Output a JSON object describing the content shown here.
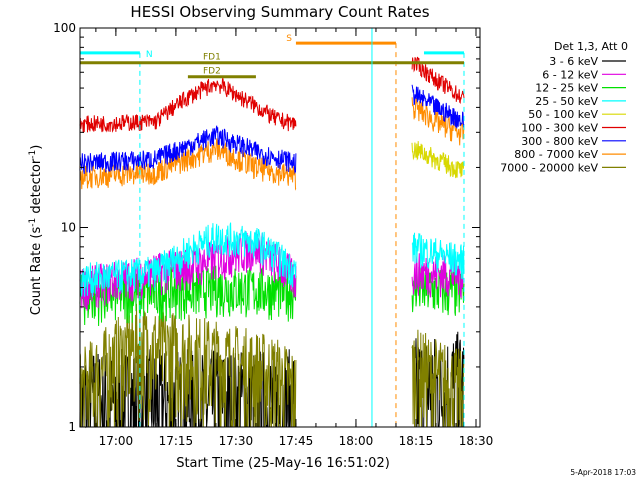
{
  "chart_data": {
    "type": "line",
    "title": "HESSI Observing Summary Count Rates",
    "xlabel": "Start Time (25-May-16 16:51:02)",
    "ylabel": "Count Rate (s⁻¹ detector⁻¹)",
    "ylabel_main": "Count Rate (s",
    "ylabel_sup1": "-1",
    "ylabel_mid": " detector",
    "ylabel_sup2": "-1",
    "ylabel_end": ")",
    "y_scale": "log",
    "ylim": [
      1,
      100
    ],
    "xlim": [
      "16:51:02",
      "18:31:00"
    ],
    "x_ticks": [
      "17:00",
      "17:15",
      "17:30",
      "17:45",
      "18:00",
      "18:15",
      "18:30"
    ],
    "y_ticks": [
      "1",
      "10",
      "100"
    ],
    "legend_title": "Det 1,3, Att 0",
    "legend_position": "right",
    "footer_date": "5-Apr-2018 17:03",
    "data_gaps": [
      [
        "17:45",
        "18:14"
      ]
    ],
    "series": [
      {
        "name": "3 - 6 keV",
        "color": "#000000",
        "x": [
          "16:51",
          "17:45",
          "18:14",
          "18:27"
        ],
        "values": [
          1.3,
          1.3,
          1.5,
          1.6
        ]
      },
      {
        "name": "6 - 12 keV",
        "color": "#e000e0",
        "x": [
          "16:51",
          "17:20",
          "17:35",
          "17:45",
          "18:14",
          "18:27"
        ],
        "values": [
          5.0,
          6.5,
          8.0,
          5.5,
          6.0,
          5.8
        ]
      },
      {
        "name": "12 - 25 keV",
        "color": "#00e000",
        "x": [
          "16:51",
          "17:25",
          "17:45",
          "18:14",
          "18:27"
        ],
        "values": [
          4.5,
          5.0,
          4.8,
          5.0,
          4.8
        ]
      },
      {
        "name": "25 - 50 keV",
        "color": "#00ffff",
        "x": [
          "16:51",
          "17:10",
          "17:25",
          "17:35",
          "17:45",
          "18:14",
          "18:27"
        ],
        "values": [
          5.5,
          6.0,
          9.0,
          8.5,
          6.0,
          8.0,
          6.8
        ]
      },
      {
        "name": "50 - 100 keV",
        "color": "#d8d800",
        "x": [
          "18:14",
          "18:20",
          "18:27"
        ],
        "values": [
          25.0,
          22.0,
          19.0
        ]
      },
      {
        "name": "100 - 300 keV",
        "color": "#e00000",
        "x": [
          "16:51",
          "17:10",
          "17:18",
          "17:25",
          "17:32",
          "17:40",
          "17:45",
          "18:14",
          "18:20",
          "18:27"
        ],
        "values": [
          33.0,
          34.0,
          45.0,
          53.0,
          44.0,
          35.0,
          33.0,
          68.0,
          55.0,
          44.0
        ]
      },
      {
        "name": "300 - 800 keV",
        "color": "#0000ff",
        "x": [
          "16:51",
          "17:10",
          "17:25",
          "17:35",
          "17:45",
          "18:14",
          "18:20",
          "18:27"
        ],
        "values": [
          21.0,
          22.0,
          29.0,
          24.0,
          21.0,
          47.0,
          40.0,
          34.0
        ]
      },
      {
        "name": "800 - 7000 keV",
        "color": "#ff8c00",
        "x": [
          "16:51",
          "17:10",
          "17:25",
          "17:35",
          "17:45",
          "18:14",
          "18:20",
          "18:27"
        ],
        "values": [
          18.0,
          19.0,
          25.0,
          20.0,
          18.0,
          41.0,
          34.0,
          29.0
        ]
      },
      {
        "name": "7000 - 20000 keV",
        "color": "#808000",
        "x": [
          "16:51",
          "17:05",
          "17:20",
          "17:40",
          "17:45",
          "18:14",
          "18:27"
        ],
        "values": [
          1.5,
          2.6,
          2.3,
          1.8,
          1.5,
          2.0,
          1.5
        ]
      }
    ],
    "annotations": [
      {
        "text": "N",
        "color": "#00ffff",
        "x": [
          "16:51",
          "17:06"
        ],
        "level": 75,
        "markers": [
          "17:06"
        ]
      },
      {
        "text": "N",
        "color": "#00ffff",
        "x": [
          "18:17",
          "18:27"
        ],
        "level": 75,
        "markers": [
          "18:27"
        ],
        "label_hidden": true
      },
      {
        "text": "S",
        "color": "#ff8c00",
        "x": [
          "17:45",
          "18:10"
        ],
        "level": 84,
        "markers": [
          "18:10"
        ]
      },
      {
        "text": "FD1",
        "color": "#808000",
        "x": [
          "16:51",
          "18:27"
        ],
        "level": 67
      },
      {
        "text": "FD2",
        "color": "#808000",
        "x": [
          "17:18",
          "17:35"
        ],
        "level": 57
      },
      {
        "text": "",
        "color": "#00ffff",
        "x": [
          "18:04",
          "18:04"
        ],
        "vertical": true
      }
    ]
  }
}
